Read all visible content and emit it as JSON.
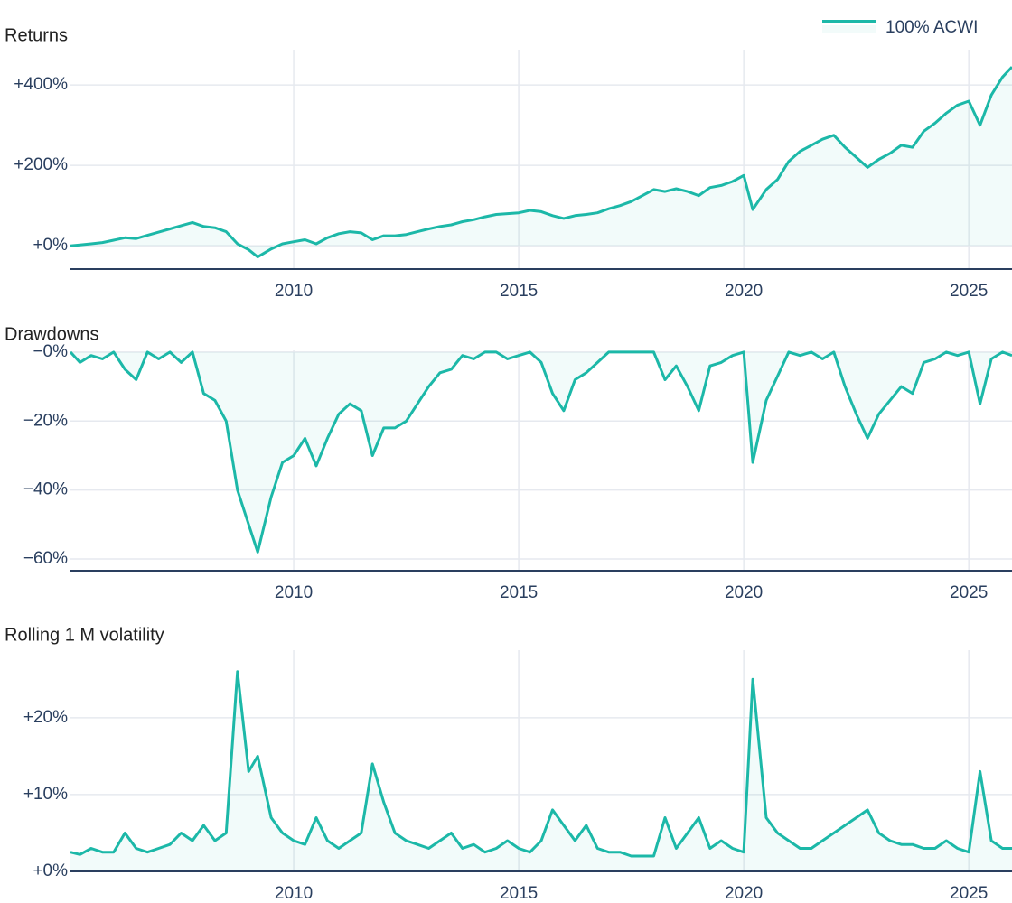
{
  "chart_data": [
    {
      "type": "line",
      "title": "Returns",
      "legend": "top-right",
      "grid": true,
      "fill": true,
      "x": [
        2005.04,
        2005.25,
        2005.5,
        2005.75,
        2006,
        2006.25,
        2006.5,
        2006.75,
        2007,
        2007.25,
        2007.5,
        2007.75,
        2008,
        2008.25,
        2008.5,
        2008.75,
        2009,
        2009.2,
        2009.5,
        2009.75,
        2010,
        2010.25,
        2010.5,
        2010.75,
        2011,
        2011.25,
        2011.5,
        2011.75,
        2012,
        2012.25,
        2012.5,
        2012.75,
        2013,
        2013.25,
        2013.5,
        2013.75,
        2014,
        2014.25,
        2014.5,
        2014.75,
        2015,
        2015.25,
        2015.5,
        2015.75,
        2016,
        2016.25,
        2016.5,
        2016.75,
        2017,
        2017.25,
        2017.5,
        2017.75,
        2018,
        2018.25,
        2018.5,
        2018.75,
        2019,
        2019.25,
        2019.5,
        2019.75,
        2020,
        2020.2,
        2020.5,
        2020.75,
        2021,
        2021.25,
        2021.5,
        2021.75,
        2022,
        2022.25,
        2022.5,
        2022.75,
        2023,
        2023.25,
        2023.5,
        2023.75,
        2024,
        2024.25,
        2024.5,
        2024.75,
        2025,
        2025.25,
        2025.5,
        2025.75,
        2025.96
      ],
      "series": [
        {
          "name": "100% ACWI",
          "color": "#1cb8a8",
          "values": [
            0,
            2,
            5,
            8,
            14,
            20,
            18,
            26,
            34,
            42,
            50,
            58,
            48,
            45,
            35,
            5,
            -10,
            -28,
            -8,
            5,
            10,
            15,
            5,
            20,
            30,
            35,
            32,
            15,
            25,
            25,
            28,
            35,
            42,
            48,
            52,
            60,
            65,
            72,
            78,
            80,
            82,
            88,
            85,
            75,
            68,
            75,
            78,
            82,
            92,
            100,
            110,
            125,
            140,
            135,
            142,
            135,
            125,
            145,
            150,
            160,
            175,
            90,
            140,
            165,
            210,
            235,
            250,
            265,
            275,
            245,
            220,
            195,
            215,
            230,
            250,
            245,
            285,
            305,
            330,
            350,
            360,
            300,
            375,
            420,
            445
          ]
        }
      ],
      "xlim": [
        2005.04,
        2025.96
      ],
      "xticks": [
        2010,
        2015,
        2020,
        2025
      ],
      "ylim": [
        -58,
        488
      ],
      "yticks": [
        {
          "value": 0,
          "label": "+0%"
        },
        {
          "value": 200,
          "label": "+200%"
        },
        {
          "value": 400,
          "label": "+400%"
        }
      ]
    },
    {
      "type": "line",
      "title": "Drawdowns",
      "grid": true,
      "fill": true,
      "x": [
        2005.04,
        2005.25,
        2005.5,
        2005.75,
        2006,
        2006.25,
        2006.5,
        2006.75,
        2007,
        2007.25,
        2007.5,
        2007.75,
        2008,
        2008.25,
        2008.5,
        2008.75,
        2009,
        2009.2,
        2009.5,
        2009.75,
        2010,
        2010.25,
        2010.5,
        2010.75,
        2011,
        2011.25,
        2011.5,
        2011.75,
        2012,
        2012.25,
        2012.5,
        2012.75,
        2013,
        2013.25,
        2013.5,
        2013.75,
        2014,
        2014.25,
        2014.5,
        2014.75,
        2015,
        2015.25,
        2015.5,
        2015.75,
        2016,
        2016.25,
        2016.5,
        2016.75,
        2017,
        2017.25,
        2017.5,
        2017.75,
        2018,
        2018.25,
        2018.5,
        2018.75,
        2019,
        2019.25,
        2019.5,
        2019.75,
        2020,
        2020.2,
        2020.5,
        2020.75,
        2021,
        2021.25,
        2021.5,
        2021.75,
        2022,
        2022.25,
        2022.5,
        2022.75,
        2023,
        2023.25,
        2023.5,
        2023.75,
        2024,
        2024.25,
        2024.5,
        2024.75,
        2025,
        2025.25,
        2025.5,
        2025.75,
        2025.96
      ],
      "series": [
        {
          "color": "#1cb8a8",
          "values": [
            0,
            -3,
            -1,
            -2,
            0,
            -5,
            -8,
            0,
            -2,
            0,
            -3,
            0,
            -12,
            -14,
            -20,
            -40,
            -50,
            -58,
            -42,
            -32,
            -30,
            -25,
            -33,
            -25,
            -18,
            -15,
            -17,
            -30,
            -22,
            -22,
            -20,
            -15,
            -10,
            -6,
            -5,
            -1,
            -2,
            0,
            0,
            -2,
            -1,
            0,
            -3,
            -12,
            -17,
            -8,
            -6,
            -3,
            0,
            0,
            0,
            0,
            0,
            -8,
            -4,
            -10,
            -17,
            -4,
            -3,
            -1,
            0,
            -32,
            -14,
            -7,
            0,
            -1,
            0,
            -2,
            0,
            -10,
            -18,
            -25,
            -18,
            -14,
            -10,
            -12,
            -3,
            -2,
            0,
            -1,
            0,
            -15,
            -2,
            0,
            -1
          ]
        }
      ],
      "xlim": [
        2005.04,
        2025.96
      ],
      "xticks": [
        2010,
        2015,
        2020,
        2025
      ],
      "ylim": [
        -63.4,
        0.5
      ],
      "yticks": [
        {
          "value": 0,
          "label": "−0%"
        },
        {
          "value": -20,
          "label": "−20%"
        },
        {
          "value": -40,
          "label": "−40%"
        },
        {
          "value": -60,
          "label": "−60%"
        }
      ]
    },
    {
      "type": "line",
      "title": "Rolling 1 M volatility",
      "grid": true,
      "fill": true,
      "x": [
        2005.04,
        2005.25,
        2005.5,
        2005.75,
        2006,
        2006.25,
        2006.5,
        2006.75,
        2007,
        2007.25,
        2007.5,
        2007.75,
        2008,
        2008.25,
        2008.5,
        2008.75,
        2009,
        2009.2,
        2009.5,
        2009.75,
        2010,
        2010.25,
        2010.5,
        2010.75,
        2011,
        2011.25,
        2011.5,
        2011.75,
        2012,
        2012.25,
        2012.5,
        2012.75,
        2013,
        2013.25,
        2013.5,
        2013.75,
        2014,
        2014.25,
        2014.5,
        2014.75,
        2015,
        2015.25,
        2015.5,
        2015.75,
        2016,
        2016.25,
        2016.5,
        2016.75,
        2017,
        2017.25,
        2017.5,
        2017.75,
        2018,
        2018.25,
        2018.5,
        2018.75,
        2019,
        2019.25,
        2019.5,
        2019.75,
        2020,
        2020.2,
        2020.5,
        2020.75,
        2021,
        2021.25,
        2021.5,
        2021.75,
        2022,
        2022.25,
        2022.5,
        2022.75,
        2023,
        2023.25,
        2023.5,
        2023.75,
        2024,
        2024.25,
        2024.5,
        2024.75,
        2025,
        2025.25,
        2025.5,
        2025.75,
        2025.96
      ],
      "series": [
        {
          "color": "#1cb8a8",
          "values": [
            2.5,
            2.2,
            3,
            2.5,
            2.5,
            5,
            3,
            2.5,
            3,
            3.5,
            5,
            4,
            6,
            4,
            5,
            26,
            13,
            15,
            7,
            5,
            4,
            3.5,
            7,
            4,
            3,
            4,
            5,
            14,
            9,
            5,
            4,
            3.5,
            3,
            4,
            5,
            3,
            3.5,
            2.5,
            3,
            4,
            3,
            2.5,
            4,
            8,
            6,
            4,
            6,
            3,
            2.5,
            2.5,
            2,
            2,
            2,
            7,
            3,
            5,
            7,
            3,
            4,
            3,
            2.5,
            25,
            7,
            5,
            4,
            3,
            3,
            4,
            5,
            6,
            7,
            8,
            5,
            4,
            3.5,
            3.5,
            3,
            3,
            4,
            3,
            2.5,
            13,
            4,
            3,
            3
          ]
        }
      ],
      "xlim": [
        2005.04,
        2025.96
      ],
      "xticks": [
        2010,
        2015,
        2020,
        2025
      ],
      "ylim": [
        0,
        28.8
      ],
      "yticks": [
        {
          "value": 0,
          "label": "+0%"
        },
        {
          "value": 10,
          "label": "+10%"
        },
        {
          "value": 20,
          "label": "+20%"
        }
      ]
    }
  ]
}
